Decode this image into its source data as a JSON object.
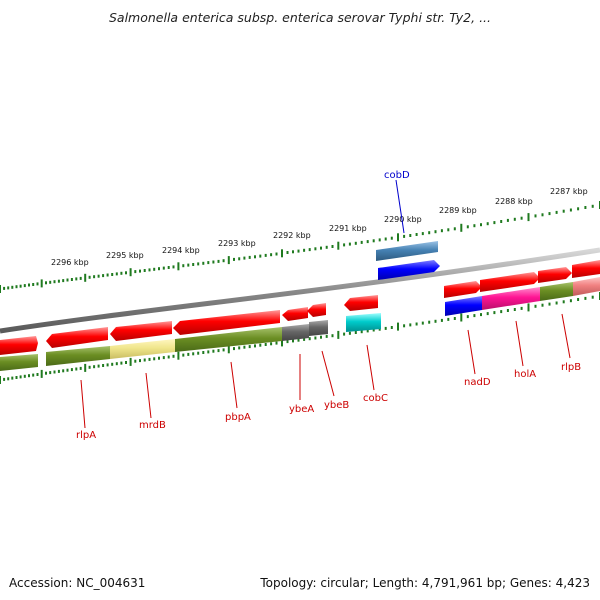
{
  "title": "Salmonella enterica subsp. enterica serovar Typhi str. Ty2, ...",
  "footer": {
    "accession": "Accession: NC_004631",
    "topology": "Topology: circular; Length: 4,791,961 bp; Genes: 4,423"
  },
  "colors": {
    "background": "#ffffff",
    "backbone": "#808080",
    "scale": "#1f7a1f",
    "label_default": "#cc0000",
    "label_highlight": "#0000cc"
  },
  "upper_scale": {
    "ticks": [
      {
        "label": "2296 kbp"
      },
      {
        "label": "2295 kbp"
      },
      {
        "label": "2294 kbp"
      },
      {
        "label": "2293 kbp"
      },
      {
        "label": "2292 kbp"
      },
      {
        "label": "2291 kbp"
      },
      {
        "label": "2290 kbp"
      },
      {
        "label": "2289 kbp"
      },
      {
        "label": "2288 kbp"
      },
      {
        "label": "2287 kbp"
      }
    ]
  },
  "genes": {
    "labels": [
      {
        "name": "cobD",
        "color": "#0000cc"
      },
      {
        "name": "rlpA",
        "color": "#cc0000"
      },
      {
        "name": "mrdB",
        "color": "#cc0000"
      },
      {
        "name": "pbpA",
        "color": "#cc0000"
      },
      {
        "name": "ybeA",
        "color": "#cc0000"
      },
      {
        "name": "ybeB",
        "color": "#cc0000"
      },
      {
        "name": "cobC",
        "color": "#cc0000"
      },
      {
        "name": "nadD",
        "color": "#cc0000"
      },
      {
        "name": "holA",
        "color": "#cc0000"
      },
      {
        "name": "rlpB",
        "color": "#cc0000"
      }
    ],
    "features": [
      {
        "kind": "gene",
        "color": "#ff0000"
      },
      {
        "kind": "cds",
        "color": "#6b8e23"
      },
      {
        "kind": "cds",
        "color": "#f0e68c"
      },
      {
        "kind": "cds",
        "color": "#666666"
      },
      {
        "kind": "cds",
        "color": "#4682b4"
      },
      {
        "kind": "cds",
        "color": "#0000ff"
      },
      {
        "kind": "cds",
        "color": "#00cccc"
      },
      {
        "kind": "cds",
        "color": "#ff1493"
      },
      {
        "kind": "cds",
        "color": "#f08080"
      }
    ]
  }
}
